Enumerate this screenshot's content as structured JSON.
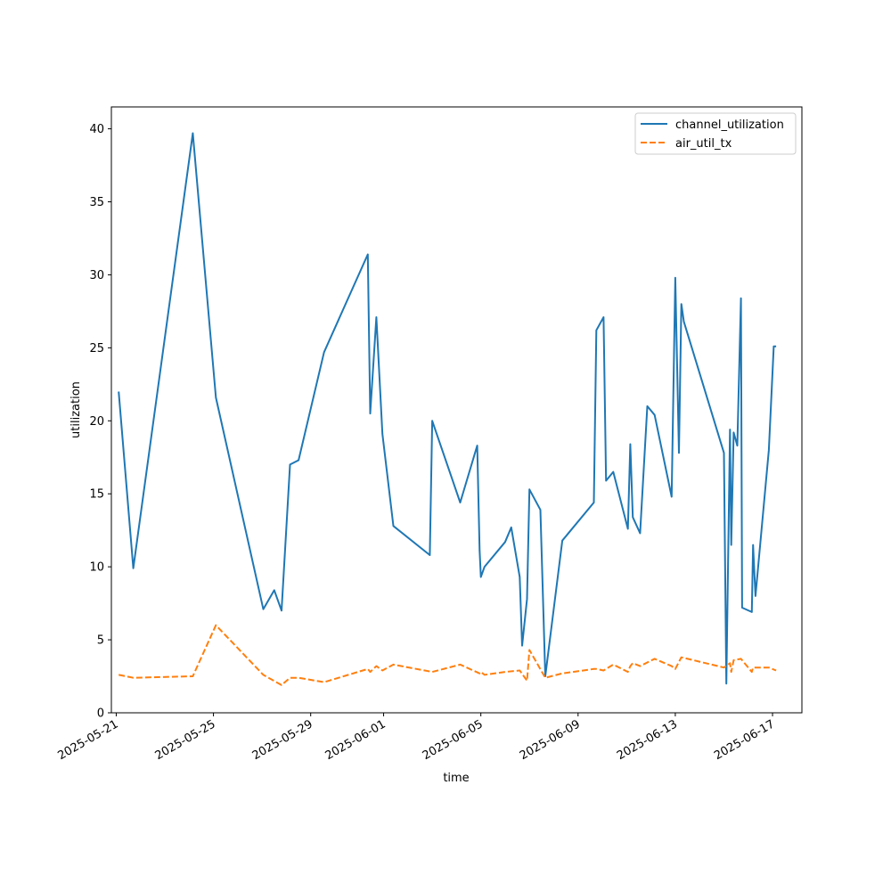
{
  "chart_data": {
    "type": "line",
    "title": "",
    "xlabel": "time",
    "ylabel": "utilization",
    "ylim": [
      0,
      41.5
    ],
    "xlim": [
      "2025-05-20T19:12",
      "2025-06-18T05:00"
    ],
    "yticks": [
      0,
      5,
      10,
      15,
      20,
      25,
      30,
      35,
      40
    ],
    "xticks": [
      "2025-05-21",
      "2025-05-25",
      "2025-05-29",
      "2025-06-01",
      "2025-06-05",
      "2025-06-09",
      "2025-06-13",
      "2025-06-17"
    ],
    "grid": false,
    "legend": {
      "placement": "top-right"
    },
    "series": [
      {
        "name": "channel_utilization",
        "color": "#1f77b4",
        "style": "solid",
        "x": [
          "2025-05-21T02:24",
          "2025-05-21T16:48",
          "2025-05-24T03:36",
          "2025-05-25T02:24",
          "2025-05-27T01:12",
          "2025-05-27T12:00",
          "2025-05-27T19:12",
          "2025-05-28T03:36",
          "2025-05-28T12:00",
          "2025-05-29T13:12",
          "2025-05-31T08:24",
          "2025-05-31T10:48",
          "2025-05-31T16:48",
          "2025-05-31T22:48",
          "2025-06-01T09:36",
          "2025-06-02T21:36",
          "2025-06-03T00:00",
          "2025-06-04T03:36",
          "2025-06-04T20:24",
          "2025-06-04T22:48",
          "2025-06-05T00:00",
          "2025-06-05T03:36",
          "2025-06-06T00:00",
          "2025-06-06T06:00",
          "2025-06-06T14:24",
          "2025-06-06T16:48",
          "2025-06-06T21:36",
          "2025-06-07T00:00",
          "2025-06-07T10:48",
          "2025-06-07T15:36",
          "2025-06-08T08:24",
          "2025-06-09T15:36",
          "2025-06-09T18:00",
          "2025-06-10T01:12",
          "2025-06-10T03:36",
          "2025-06-10T10:48",
          "2025-06-11T01:12",
          "2025-06-11T03:36",
          "2025-06-11T06:00",
          "2025-06-11T13:12",
          "2025-06-11T20:24",
          "2025-06-12T03:36",
          "2025-06-12T20:24",
          "2025-06-13T00:00",
          "2025-06-13T03:36",
          "2025-06-13T06:00",
          "2025-06-13T08:24",
          "2025-06-15T00:00",
          "2025-06-15T02:24",
          "2025-06-15T06:00",
          "2025-06-15T07:12",
          "2025-06-15T09:36",
          "2025-06-15T13:12",
          "2025-06-15T16:48",
          "2025-06-15T18:00",
          "2025-06-16T03:36",
          "2025-06-16T04:48",
          "2025-06-16T07:12",
          "2025-06-16T20:24",
          "2025-06-17T01:12",
          "2025-06-17T03:36"
        ],
        "values": [
          22.0,
          9.9,
          39.7,
          21.6,
          7.1,
          8.4,
          7.0,
          17.0,
          17.3,
          24.7,
          31.4,
          20.5,
          27.1,
          19.1,
          12.8,
          10.8,
          20.0,
          14.4,
          18.3,
          11.1,
          9.3,
          10.0,
          11.7,
          12.7,
          9.3,
          4.6,
          7.8,
          15.3,
          13.9,
          2.5,
          11.8,
          14.4,
          26.2,
          27.1,
          15.9,
          16.5,
          12.6,
          18.4,
          13.4,
          12.3,
          21.0,
          20.4,
          14.8,
          29.8,
          17.8,
          28.0,
          26.8,
          17.8,
          2.0,
          19.4,
          11.5,
          19.2,
          18.3,
          28.4,
          7.2,
          6.9,
          11.5,
          8.0,
          18.0,
          25.1,
          25.1
        ]
      },
      {
        "name": "air_util_tx",
        "color": "#ff7f0e",
        "style": "dashed",
        "x": [
          "2025-05-21T02:24",
          "2025-05-21T16:48",
          "2025-05-24T03:36",
          "2025-05-25T02:24",
          "2025-05-27T01:12",
          "2025-05-27T19:12",
          "2025-05-28T03:36",
          "2025-05-28T12:00",
          "2025-05-29T13:12",
          "2025-05-31T08:24",
          "2025-05-31T10:48",
          "2025-05-31T16:48",
          "2025-05-31T22:48",
          "2025-06-01T09:36",
          "2025-06-03T00:00",
          "2025-06-04T03:36",
          "2025-06-04T22:48",
          "2025-06-05T00:00",
          "2025-06-05T03:36",
          "2025-06-06T00:00",
          "2025-06-06T14:24",
          "2025-06-06T21:36",
          "2025-06-07T00:00",
          "2025-06-07T15:36",
          "2025-06-08T08:24",
          "2025-06-09T15:36",
          "2025-06-09T18:00",
          "2025-06-10T01:12",
          "2025-06-10T03:36",
          "2025-06-10T10:48",
          "2025-06-11T01:12",
          "2025-06-11T03:36",
          "2025-06-11T06:00",
          "2025-06-11T13:12",
          "2025-06-12T03:36",
          "2025-06-12T20:24",
          "2025-06-13T00:00",
          "2025-06-13T06:00",
          "2025-06-15T00:00",
          "2025-06-15T06:00",
          "2025-06-15T07:12",
          "2025-06-15T09:36",
          "2025-06-15T16:48",
          "2025-06-16T03:36",
          "2025-06-16T04:48",
          "2025-06-16T07:12",
          "2025-06-16T20:24",
          "2025-06-17T03:36"
        ],
        "values": [
          2.6,
          2.4,
          2.5,
          6.0,
          2.6,
          1.9,
          2.4,
          2.4,
          2.1,
          3.0,
          2.8,
          3.2,
          2.9,
          3.3,
          2.8,
          3.3,
          2.7,
          2.8,
          2.6,
          2.8,
          2.9,
          2.2,
          4.3,
          2.4,
          2.7,
          3.0,
          3.0,
          2.9,
          3.0,
          3.3,
          2.8,
          3.2,
          3.4,
          3.2,
          3.7,
          3.2,
          3.0,
          3.8,
          3.1,
          3.4,
          2.8,
          3.6,
          3.7,
          2.8,
          3.1,
          3.1,
          3.1,
          2.9
        ]
      }
    ]
  }
}
